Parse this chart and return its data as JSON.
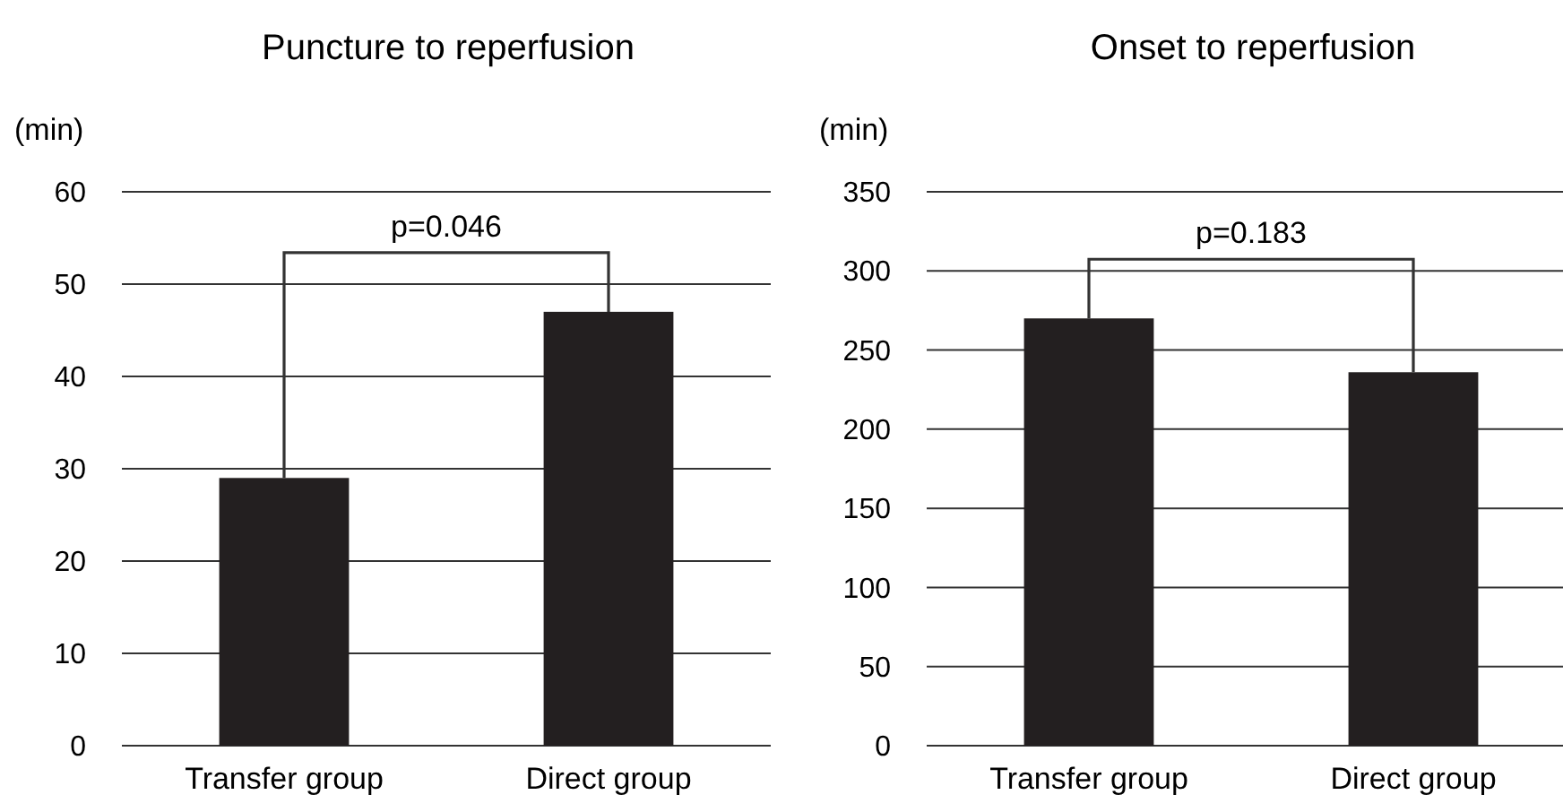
{
  "chart_data": [
    {
      "type": "bar",
      "title": "Puncture to reperfusion",
      "ylabel": "(min)",
      "categories": [
        "Transfer group",
        "Direct group"
      ],
      "values": [
        29,
        47
      ],
      "color": "#231f20",
      "ylim": [
        0,
        60
      ],
      "yticks": [
        0,
        10,
        20,
        30,
        40,
        50,
        60
      ],
      "grid": "y",
      "annotations": [
        "p=0.046"
      ]
    },
    {
      "type": "bar",
      "title": "Onset to reperfusion",
      "ylabel": "(min)",
      "categories": [
        "Transfer group",
        "Direct group"
      ],
      "values": [
        270,
        236
      ],
      "color": "#231f20",
      "ylim": [
        0,
        350
      ],
      "yticks": [
        0,
        50,
        100,
        150,
        200,
        250,
        300,
        350
      ],
      "grid": "y",
      "annotations": [
        "p=0.183"
      ]
    }
  ]
}
